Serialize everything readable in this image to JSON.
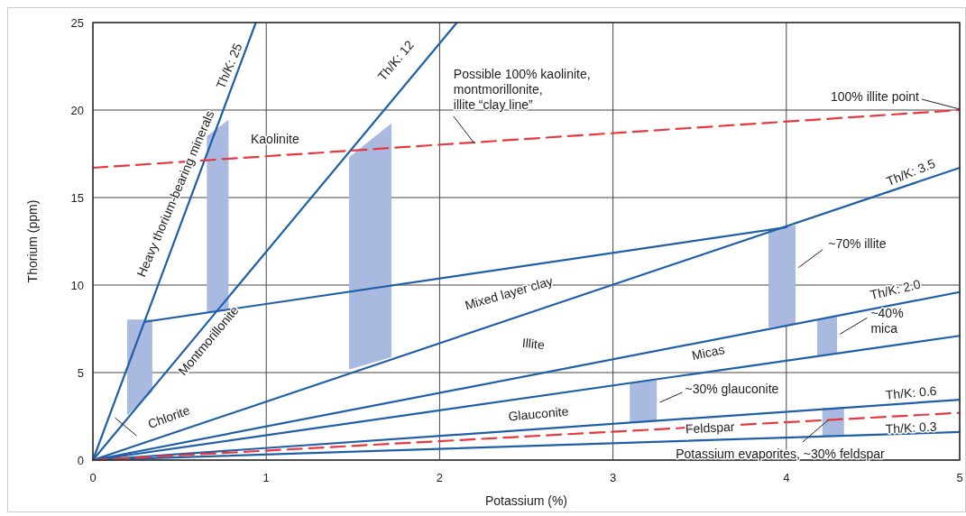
{
  "chart_data": {
    "type": "line",
    "xlabel": "Potassium (%)",
    "ylabel": "Thorium (ppm)",
    "xlim": [
      0,
      5
    ],
    "xticks": [
      0,
      1,
      2,
      3,
      4,
      5
    ],
    "ylim": [
      0,
      25
    ],
    "yticks": [
      0,
      5,
      10,
      15,
      20,
      25
    ],
    "grid": true,
    "marker": "none",
    "series": [
      {
        "type": "area",
        "color": "#a9b9e0",
        "x": [
          0.2,
          0.34,
          0.34,
          0.2
        ],
        "values": [
          2.6,
          3.9,
          8.0,
          8.0
        ]
      },
      {
        "type": "area",
        "color": "#a9b9e0",
        "x": [
          0.66,
          0.78,
          0.78,
          0.66
        ],
        "values": [
          8.5,
          8.7,
          19.4,
          18.5
        ]
      },
      {
        "type": "area",
        "color": "#a9b9e0",
        "x": [
          1.48,
          1.72,
          1.72,
          1.48
        ],
        "values": [
          5.2,
          5.9,
          19.2,
          17.3
        ]
      },
      {
        "type": "area",
        "color": "#a9b9e0",
        "x": [
          3.9,
          4.05,
          4.05,
          3.9
        ],
        "values": [
          7.6,
          7.8,
          13.4,
          13.2
        ]
      },
      {
        "type": "area",
        "color": "#a9b9e0",
        "x": [
          4.18,
          4.29,
          4.29,
          4.18
        ],
        "values": [
          6.0,
          6.15,
          8.15,
          8.0
        ]
      },
      {
        "type": "area",
        "color": "#a9b9e0",
        "x": [
          3.1,
          3.25,
          3.25,
          3.1
        ],
        "values": [
          2.15,
          2.3,
          4.55,
          4.4
        ]
      },
      {
        "type": "area",
        "color": "#a9b9e0",
        "x": [
          4.21,
          4.33,
          4.33,
          4.21
        ],
        "values": [
          1.4,
          1.45,
          3.0,
          2.95
        ]
      },
      {
        "color": "#1f5fa8",
        "line_style": "solid",
        "x": [
          0,
          0.94
        ],
        "values": [
          0,
          25
        ]
      },
      {
        "color": "#1f5fa8",
        "line_style": "solid",
        "x": [
          0,
          2.1
        ],
        "values": [
          0,
          25
        ]
      },
      {
        "color": "#1f5fa8",
        "line_style": "solid",
        "x": [
          0,
          5
        ],
        "values": [
          0,
          16.7
        ]
      },
      {
        "color": "#1f5fa8",
        "line_style": "solid",
        "x": [
          0,
          5
        ],
        "values": [
          0,
          9.6
        ]
      },
      {
        "color": "#1f5fa8",
        "line_style": "solid",
        "x": [
          0,
          5
        ],
        "values": [
          0,
          7.1
        ]
      },
      {
        "color": "#1f5fa8",
        "line_style": "solid",
        "x": [
          0,
          5
        ],
        "values": [
          0,
          3.45
        ]
      },
      {
        "color": "#1f5fa8",
        "line_style": "solid",
        "x": [
          0,
          5
        ],
        "values": [
          0,
          1.6
        ]
      },
      {
        "color": "#1f5fa8",
        "line_style": "solid",
        "x": [
          0.3,
          4.0
        ],
        "values": [
          7.9,
          13.3
        ]
      },
      {
        "color": "#e8383d",
        "line_style": "dashed",
        "x": [
          0,
          5
        ],
        "values": [
          16.7,
          20.0
        ]
      },
      {
        "color": "#e8383d",
        "line_style": "dashed",
        "x": [
          0,
          5
        ],
        "values": [
          0,
          2.7
        ]
      }
    ],
    "annotations": [
      "Heavy thorium-bearing minerals",
      "Th/K: 25",
      "Kaolinite",
      "Th/K: 12",
      {
        "text": "Possible 100% kaolinite,\nmontmorillonite,\nillite “clay line”",
        "x": 2.2,
        "y": 18.1
      },
      {
        "text": "100% illite point",
        "x": 5,
        "y": 20.0
      },
      "Th/K: 3.5",
      {
        "text": "~70% illite",
        "x": 4.07,
        "y": 11.0
      },
      "Mixed layer clay",
      "Illite",
      "Th/K: 2.0",
      {
        "text": "~40%\nmica",
        "x": 4.31,
        "y": 7.2
      },
      "Micas",
      "Montmorillonite",
      {
        "text": "Chlorite",
        "x": 0.19,
        "y": 1.9
      },
      "Glauconite",
      {
        "text": "~30% glauconite",
        "x": 3.27,
        "y": 3.3
      },
      "Th/K: 0.6",
      "Feldspar",
      "Th/K: 0.3",
      {
        "text": "Potassium evaporites, ~30% feldspar",
        "x": 4.24,
        "y": 2.27
      }
    ]
  }
}
